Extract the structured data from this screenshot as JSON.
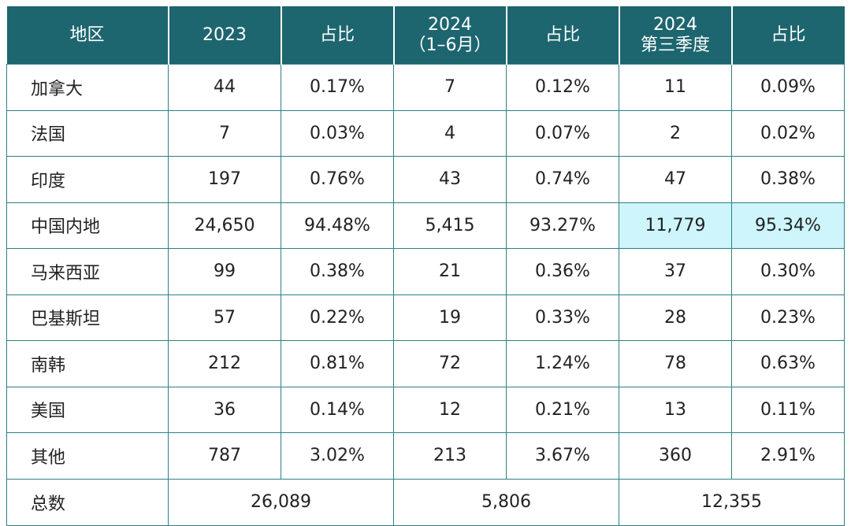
{
  "header": {
    "region": "地区",
    "y2023": "2023",
    "share1": "占比",
    "h1_line1": "2024",
    "h1_line2": "（1–6月）",
    "share2": "占比",
    "q3_line1": "2024",
    "q3_line2": "第三季度",
    "share3": "占比"
  },
  "rows": [
    {
      "region": "加拿大",
      "v2023": "44",
      "p2023": "0.17%",
      "vH1": "7",
      "pH1": "0.12%",
      "vQ3": "11",
      "pQ3": "0.09%"
    },
    {
      "region": "法国",
      "v2023": "7",
      "p2023": "0.03%",
      "vH1": "4",
      "pH1": "0.07%",
      "vQ3": "2",
      "pQ3": "0.02%"
    },
    {
      "region": "印度",
      "v2023": "197",
      "p2023": "0.76%",
      "vH1": "43",
      "pH1": "0.74%",
      "vQ3": "47",
      "pQ3": "0.38%"
    },
    {
      "region": "中国内地",
      "v2023": "24,650",
      "p2023": "94.48%",
      "vH1": "5,415",
      "pH1": "93.27%",
      "vQ3": "11,779",
      "pQ3": "95.34%"
    },
    {
      "region": "马来西亚",
      "v2023": "99",
      "p2023": "0.38%",
      "vH1": "21",
      "pH1": "0.36%",
      "vQ3": "37",
      "pQ3": "0.30%"
    },
    {
      "region": "巴基斯坦",
      "v2023": "57",
      "p2023": "0.22%",
      "vH1": "19",
      "pH1": "0.33%",
      "vQ3": "28",
      "pQ3": "0.23%"
    },
    {
      "region": "南韩",
      "v2023": "212",
      "p2023": "0.81%",
      "vH1": "72",
      "pH1": "1.24%",
      "vQ3": "78",
      "pQ3": "0.63%"
    },
    {
      "region": "美国",
      "v2023": "36",
      "p2023": "0.14%",
      "vH1": "12",
      "pH1": "0.21%",
      "vQ3": "13",
      "pQ3": "0.11%"
    },
    {
      "region": "其他",
      "v2023": "787",
      "p2023": "3.02%",
      "vH1": "213",
      "pH1": "3.67%",
      "vQ3": "360",
      "pQ3": "2.91%"
    }
  ],
  "total": {
    "label": "总数",
    "v2023": "26,089",
    "vH1": "5,806",
    "vQ3": "12,355"
  },
  "colors": {
    "header_bg": "#1d6670",
    "border": "#2e7f86",
    "highlight": "#cdf5fb"
  }
}
